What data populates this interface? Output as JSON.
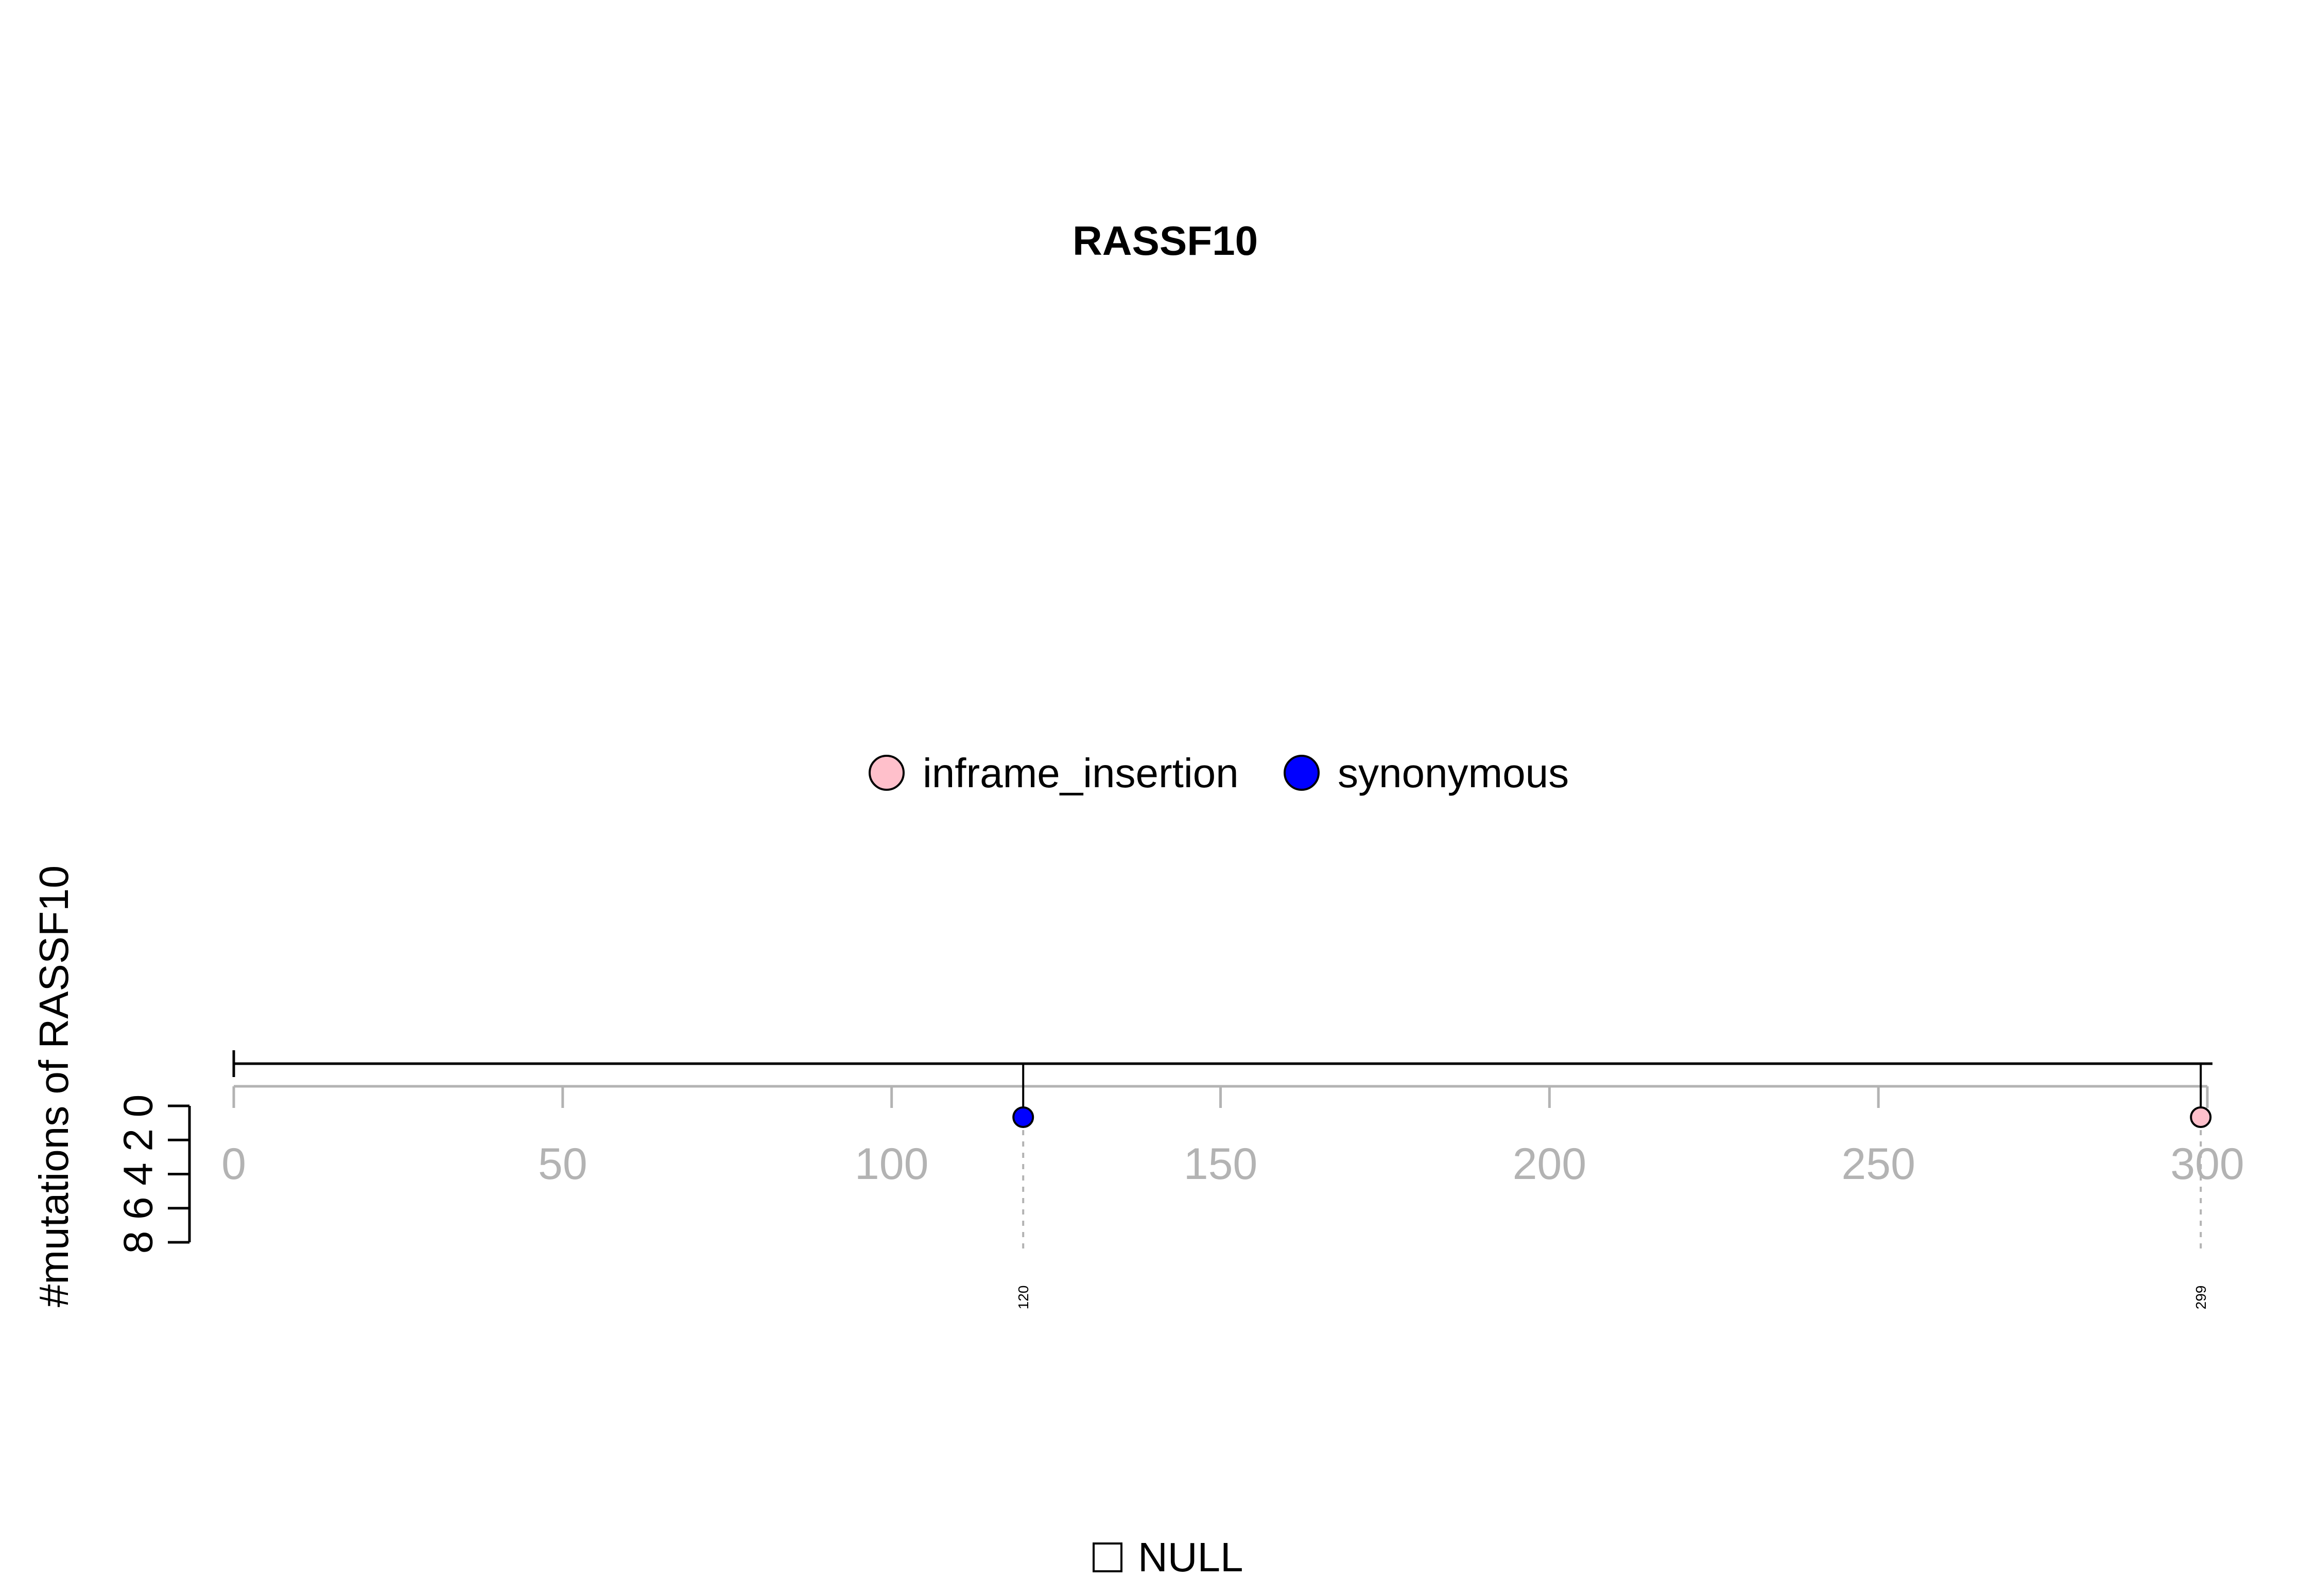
{
  "chart_data": {
    "type": "lollipop",
    "title": "RASSF10",
    "ylabel": "#mutations of RASSF10",
    "xlim": [
      0,
      300
    ],
    "ylim": [
      0,
      8
    ],
    "protein_length": 300,
    "x_ticks": [
      "0",
      "50",
      "100",
      "150",
      "200",
      "250",
      "300"
    ],
    "y_ticks": [
      "0",
      "2",
      "4",
      "6",
      "8"
    ],
    "legend_position": "top-center",
    "legend": [
      {
        "label": "inframe_insertion",
        "color": "#ffc0cb"
      },
      {
        "label": "synonymous",
        "color": "#0000ff"
      }
    ],
    "mutations": [
      {
        "position": 120,
        "count": 1,
        "type": "synonymous",
        "color": "#0000ff",
        "label": "120"
      },
      {
        "position": 299,
        "count": 1,
        "type": "inframe_insertion",
        "color": "#ffc0cb",
        "label": "299"
      }
    ],
    "domain_legend": [
      {
        "label": "NULL"
      }
    ]
  }
}
